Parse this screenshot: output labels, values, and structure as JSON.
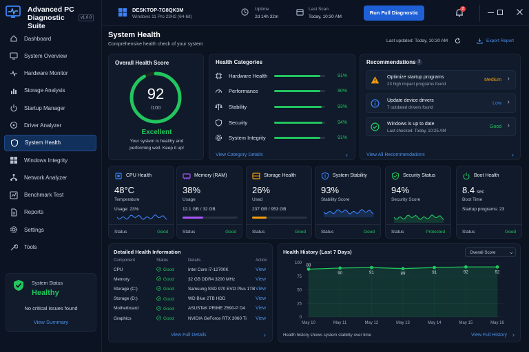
{
  "app": {
    "title": "Advanced PC Diagnostic Suite",
    "version": "v1.0.0"
  },
  "sidebar": {
    "items": [
      {
        "label": "Dashboard",
        "icon": "home-icon"
      },
      {
        "label": "System Overview",
        "icon": "monitor-icon"
      },
      {
        "label": "Hardware Monitor",
        "icon": "pulse-icon"
      },
      {
        "label": "Storage Analysis",
        "icon": "chart-bars-icon"
      },
      {
        "label": "Startup Manager",
        "icon": "power-icon"
      },
      {
        "label": "Driver Analyzer",
        "icon": "steering-icon"
      },
      {
        "label": "System Health",
        "icon": "shield-icon",
        "active": true
      },
      {
        "label": "Windows Integrity",
        "icon": "windows-icon"
      },
      {
        "label": "Network Analyzer",
        "icon": "network-icon"
      },
      {
        "label": "Benchmark Test",
        "icon": "benchmark-icon"
      },
      {
        "label": "Reports",
        "icon": "document-icon"
      },
      {
        "label": "Settings",
        "icon": "gear-icon"
      },
      {
        "label": "Tools",
        "icon": "tools-icon"
      }
    ],
    "status": {
      "title": "System Status",
      "value": "Healthy",
      "desc": "No critical issues found",
      "link": "View Summary"
    }
  },
  "topbar": {
    "hostname": "DESKTOP-7G8QK3M",
    "os": "Windows 11 Pro 23H2 (64-bit)",
    "uptime_label": "Uptime",
    "uptime_value": "2d 14h 32m",
    "scan_label": "Last Scan",
    "scan_value": "Today, 10:30 AM",
    "run_button": "Run Full Diagnostic",
    "notif_count": "2"
  },
  "header": {
    "title": "System Health",
    "subtitle": "Comprehensive health check of your system",
    "last_updated": "Last updated: Today, 10:30 AM",
    "export": "Export Report"
  },
  "overall": {
    "title": "Overall Health Score",
    "score": "92",
    "denom": "/100",
    "score_pct": 92,
    "rating": "Excellent",
    "desc1": "Your system is healthy and",
    "desc2": "performing well. Keep it up!"
  },
  "categories": {
    "title": "Health Categories",
    "link": "View Category Details",
    "items": [
      {
        "label": "Hardware Health",
        "value": 91,
        "text": "91%",
        "icon": "chip-icon"
      },
      {
        "label": "Performance",
        "value": 90,
        "text": "90%",
        "icon": "gauge-icon"
      },
      {
        "label": "Stability",
        "value": 93,
        "text": "93%",
        "icon": "balance-icon"
      },
      {
        "label": "Security",
        "value": 94,
        "text": "94%",
        "icon": "shield-icon"
      },
      {
        "label": "System Integrity",
        "value": 91,
        "text": "91%",
        "icon": "gear-icon"
      }
    ]
  },
  "recommendations": {
    "title": "Recommendations",
    "count": "3",
    "link": "View All Recommendations",
    "items": [
      {
        "title": "Optimize startup programs",
        "sub": "23 high impact programs found",
        "level": "Medium",
        "color": "#f59e0b",
        "icon": "warning-icon"
      },
      {
        "title": "Update device drivers",
        "sub": "7 outdated drivers found",
        "level": "Low",
        "color": "#3b82f6",
        "icon": "info-icon"
      },
      {
        "title": "Windows is up to date",
        "sub": "Last checked: Today, 10:25 AM",
        "level": "Good",
        "color": "#22c55e",
        "icon": "check-circle-icon"
      }
    ]
  },
  "metrics": [
    {
      "title": "CPU Health",
      "value": "48°C",
      "unit": "",
      "sub": "Temperature",
      "extra": "Usage: 23%",
      "status_label": "Status",
      "status": "Good",
      "icon": "cpu-icon",
      "color": "#3b82f6",
      "kind": "spark"
    },
    {
      "title": "Memory (RAM)",
      "value": "38%",
      "unit": "",
      "sub": "Usage",
      "extra": "12.1 GB / 32 GB",
      "status_label": "Status",
      "status": "Good",
      "icon": "memory-icon",
      "color": "#a855f7",
      "kind": "bar",
      "pct": 38
    },
    {
      "title": "Storage Health",
      "value": "26%",
      "unit": "",
      "sub": "Used",
      "extra": "237 GB / 953 GB",
      "status_label": "Status",
      "status": "Good",
      "icon": "storage-icon",
      "color": "#f59e0b",
      "kind": "bar",
      "pct": 26
    },
    {
      "title": "System Stability",
      "value": "93%",
      "unit": "",
      "sub": "Stability Score",
      "extra": "",
      "status_label": "Status",
      "status": "Good",
      "icon": "stability-icon",
      "color": "#3b82f6",
      "kind": "area"
    },
    {
      "title": "Security Status",
      "value": "94%",
      "unit": "",
      "sub": "Security Score",
      "extra": "",
      "status_label": "Status",
      "status": "Protected",
      "icon": "security-icon",
      "color": "#22c55e",
      "kind": "spark"
    },
    {
      "title": "Boot Health",
      "value": "8.4",
      "unit": "sec",
      "sub": "Boot Time",
      "extra": "Startup programs:  23",
      "status_label": "Status",
      "status": "Good",
      "icon": "power-icon",
      "color": "#22c55e",
      "kind": "none"
    }
  ],
  "details": {
    "title": "Detailed Health Information",
    "headers": [
      "Component",
      "Status",
      "Details",
      "Action"
    ],
    "rows": [
      [
        "CPU",
        "Good",
        "Intel Core i7-12700K",
        "View"
      ],
      [
        "Memory",
        "Good",
        "32 GB DDR4 3200 MHz",
        "View"
      ],
      [
        "Storage (C:)",
        "Good",
        "Samsung SSD 970 EVO Plus 1TB",
        "View"
      ],
      [
        "Storage (D:)",
        "Good",
        "WD Blue 2TB HDD",
        "View"
      ],
      [
        "Motherboard",
        "Good",
        "ASUSTeK PRIME Z690-P D4",
        "View"
      ],
      [
        "Graphics",
        "Good",
        "NVIDIA GeForce RTX 3060 Ti",
        "View"
      ]
    ],
    "link": "View Full Details"
  },
  "history": {
    "title": "Health History (Last 7 Days)",
    "dropdown": "Overall Score",
    "footer": "Health history shows system stability over time",
    "link": "View Full History"
  },
  "chart_data": {
    "type": "area",
    "title": "Health History (Last 7 Days)",
    "categories": [
      "May 10",
      "May 11",
      "May 12",
      "May 13",
      "May 14",
      "May 15",
      "May 16"
    ],
    "values": [
      88,
      90,
      91,
      89,
      91,
      92,
      92
    ],
    "yticks": [
      0,
      25,
      50,
      75,
      100
    ],
    "ylim": [
      0,
      100
    ],
    "color": "#22c55e"
  }
}
